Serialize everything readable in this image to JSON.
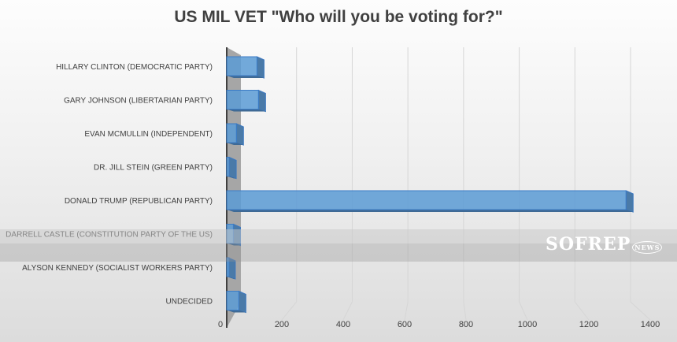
{
  "chart_data": {
    "type": "bar",
    "orientation": "horizontal",
    "style": "3d",
    "title": "US MIL VET \"Who will you be voting for?\"",
    "categories": [
      "HILLARY CLINTON (DEMOCRATIC PARTY)",
      "GARY JOHNSON (LIBERTARIAN PARTY)",
      "EVAN MCMULLIN (INDEPENDENT)",
      "DR. JILL STEIN (GREEN PARTY)",
      "DONALD TRUMP (REPUBLICAN PARTY)",
      "DARRELL CASTLE (CONSTITUTION PARTY OF THE US)",
      "ALYSON KENNEDY (SOCIALIST WORKERS PARTY)",
      "UNDECIDED"
    ],
    "values": [
      100,
      105,
      32,
      8,
      1320,
      22,
      5,
      40
    ],
    "xlim": [
      0,
      1400
    ],
    "xticks": [
      "0",
      "200",
      "400",
      "600",
      "800",
      "1000",
      "1200",
      "1400"
    ],
    "grid": true,
    "bar_color": "#5b9bd5"
  },
  "watermark": {
    "text": "SOFREP",
    "sub": "NEWS"
  }
}
